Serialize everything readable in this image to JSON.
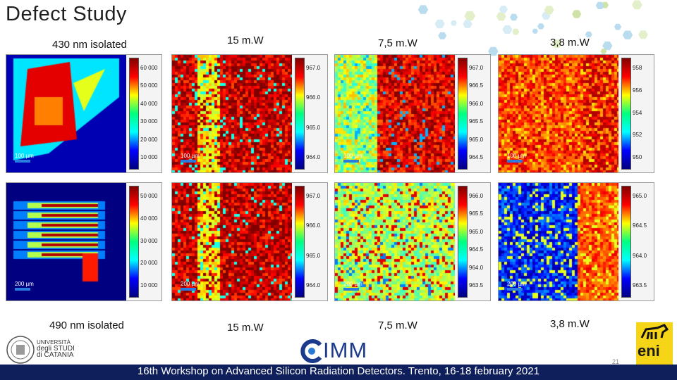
{
  "title": "Defect Study",
  "top_labels": [
    "430 nm isolated",
    "15 m.W",
    "7,5 m.W",
    "3,8 m.W"
  ],
  "bottom_labels": [
    "490 nm isolated",
    "15 m.W",
    "7,5 m.W",
    "3,8 m.W"
  ],
  "footer": "16th Workshop on Advanced Silicon Radiation Detectors. Trento, 16-18 february 2021",
  "page_number": "21",
  "imm_logo": "IMM",
  "unict_logo": [
    "UNIVERSITÀ",
    "degli STUDI",
    "di CATANIA"
  ],
  "eni_logo": "eni",
  "panels": [
    {
      "row": 0,
      "col": 0,
      "scale": "100 µm",
      "ticks": [
        "60 000",
        "50 000",
        "40 000",
        "30 000",
        "20 000",
        "10 000"
      ],
      "cmap": "jet-sparse"
    },
    {
      "row": 0,
      "col": 1,
      "scale": "100 µm",
      "ticks": [
        "967.0",
        "966.0",
        "965.0",
        "964.0"
      ],
      "cmap": "noise-red"
    },
    {
      "row": 0,
      "col": 2,
      "scale": "100 µm",
      "ticks": [
        "967.0",
        "966.5",
        "966.0",
        "965.5",
        "965.0",
        "964.5"
      ],
      "cmap": "noise-red-green"
    },
    {
      "row": 0,
      "col": 3,
      "scale": "100 µm",
      "ticks": [
        "958",
        "956",
        "954",
        "952",
        "950"
      ],
      "cmap": "noise-orange"
    },
    {
      "row": 1,
      "col": 0,
      "scale": "200 µm",
      "ticks": [
        "50 000",
        "40 000",
        "30 000",
        "20 000",
        "10 000"
      ],
      "cmap": "jet-stripes"
    },
    {
      "row": 1,
      "col": 1,
      "scale": "200 µm",
      "ticks": [
        "967.0",
        "966.0",
        "965.0",
        "964.0"
      ],
      "cmap": "noise-red2"
    },
    {
      "row": 1,
      "col": 2,
      "scale": "200 µm",
      "ticks": [
        "966.0",
        "965.5",
        "965.0",
        "964.5",
        "964.0",
        "963.5"
      ],
      "cmap": "noise-green"
    },
    {
      "row": 1,
      "col": 3,
      "scale": "200 µm",
      "ticks": [
        "965.0",
        "964.5",
        "964.0",
        "963.5"
      ],
      "cmap": "noise-blue"
    }
  ]
}
